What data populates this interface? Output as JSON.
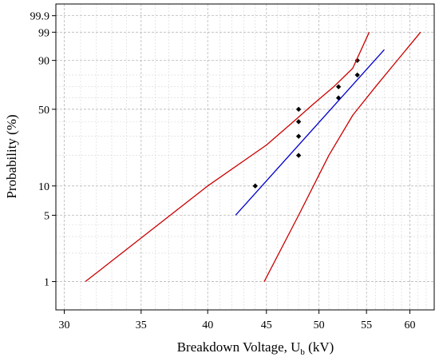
{
  "chart_data": {
    "type": "scatter",
    "title": "",
    "xlabel": "Breakdown Voltage, U",
    "xlabel_sub": "b",
    "xlabel_unit": " (kV)",
    "ylabel": "Probability (%)",
    "xscale": "log",
    "yscale": "weibull-probability",
    "xlim": [
      29.5,
      63
    ],
    "ylim": [
      0.5,
      99.99
    ],
    "grid": true,
    "x_ticks": [
      30,
      35,
      40,
      45,
      50,
      55,
      60
    ],
    "x_minor_ticks": [
      31,
      32,
      33,
      34,
      36,
      37,
      38,
      39,
      41,
      42,
      43,
      44,
      46,
      47,
      48,
      49,
      51,
      52,
      53,
      54,
      56,
      57,
      58,
      59,
      61,
      62
    ],
    "y_ticks": [
      1,
      5,
      10,
      50,
      90,
      99,
      99.9
    ],
    "y_minor_ticks": [
      2,
      3,
      4,
      20,
      30,
      40,
      60,
      70,
      80
    ],
    "series": [
      {
        "kind": "points",
        "color": "#000000",
        "x": [
          44,
          48,
          48,
          48,
          48,
          52,
          52,
          54,
          54
        ],
        "y": [
          10,
          20,
          30,
          40,
          50,
          60,
          70,
          80,
          90
        ]
      },
      {
        "kind": "fit-line",
        "color": "#0000cc",
        "x": [
          42.3,
          57
        ],
        "y": [
          5,
          95
        ]
      },
      {
        "kind": "confidence-upper",
        "color": "#cc0000",
        "x": [
          31.3,
          40,
          45,
          47.5,
          49.5,
          51.5,
          53.5,
          55.3
        ],
        "y": [
          1,
          10,
          25,
          40,
          55,
          70,
          85,
          99
        ]
      },
      {
        "kind": "confidence-lower",
        "color": "#cc0000",
        "x": [
          44.8,
          48,
          51,
          53.5,
          56,
          58.5,
          61.3
        ],
        "y": [
          1,
          5,
          20,
          45,
          70,
          90,
          99
        ]
      }
    ]
  }
}
